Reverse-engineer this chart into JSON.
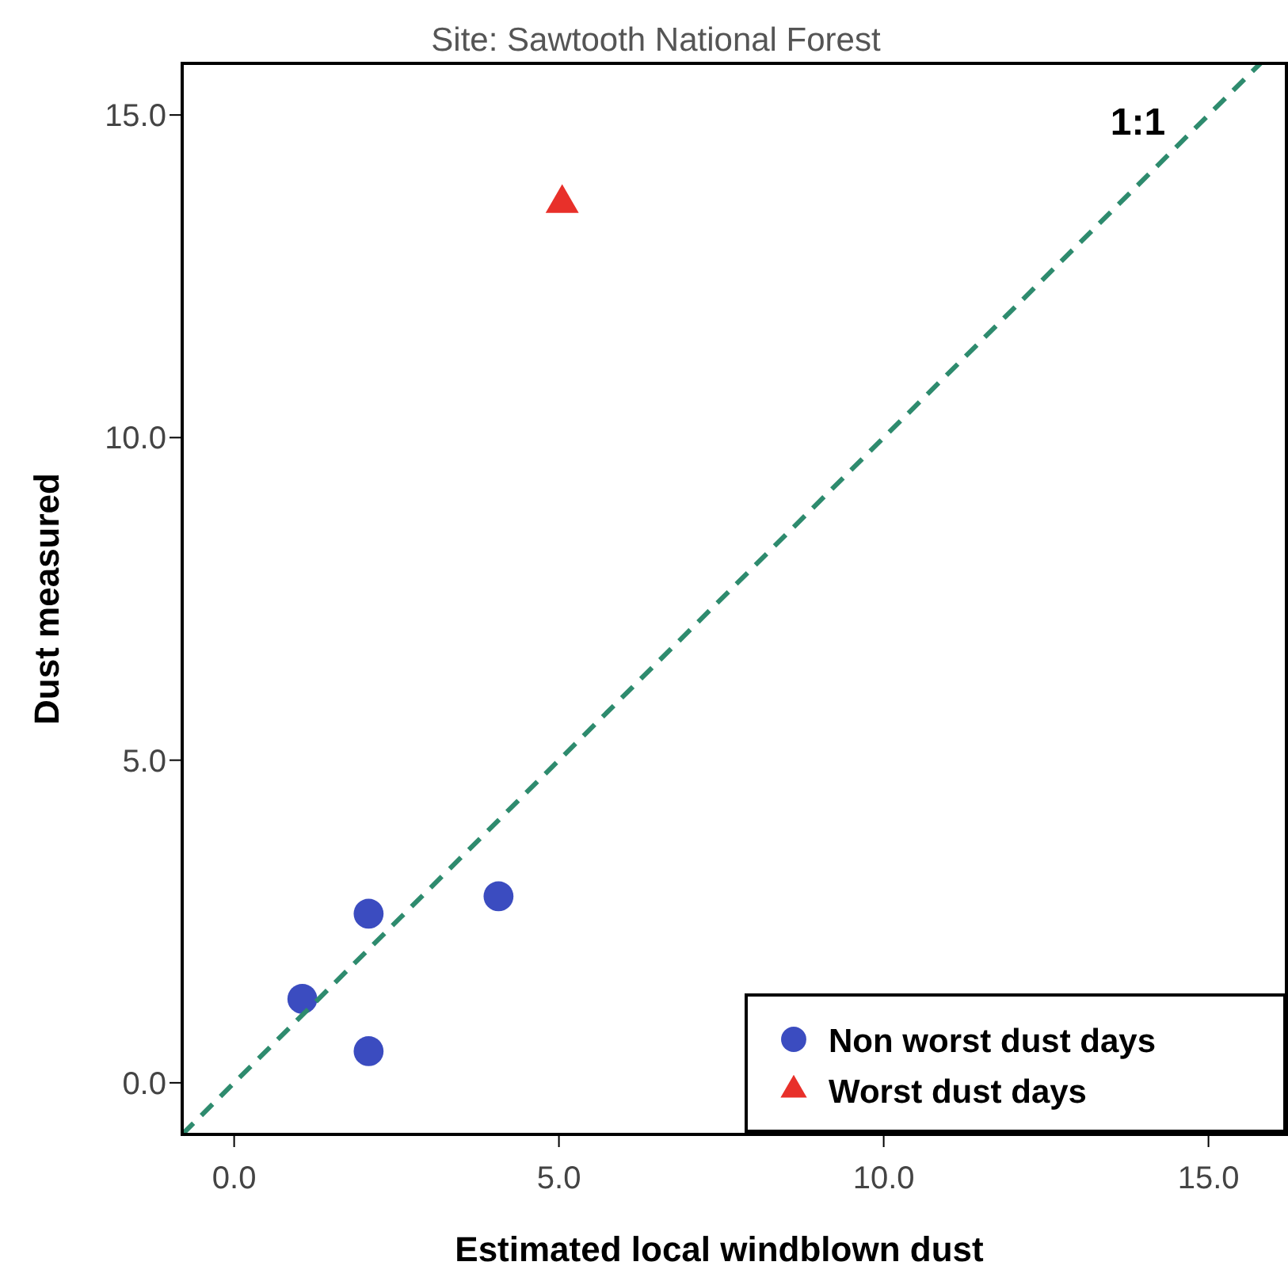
{
  "chart_data": {
    "type": "scatter",
    "title": "Site: Sawtooth National Forest",
    "xlabel": "Estimated local windblown dust",
    "ylabel": "Dust measured",
    "xlim": [
      -0.8,
      16.2
    ],
    "ylim": [
      -0.8,
      15.8
    ],
    "xticks": [
      {
        "value": 0,
        "label": "0.0"
      },
      {
        "value": 5,
        "label": "5.0"
      },
      {
        "value": 10,
        "label": "10.0"
      },
      {
        "value": 15,
        "label": "15.0"
      }
    ],
    "yticks": [
      {
        "value": 0,
        "label": "0.0"
      },
      {
        "value": 5,
        "label": "5.0"
      },
      {
        "value": 10,
        "label": "10.0"
      },
      {
        "value": 15,
        "label": "15.0"
      }
    ],
    "grid": false,
    "legend": "bottom right",
    "series": [
      {
        "name": "Non worst dust days",
        "marker": "circle",
        "color": "#3b4cc0",
        "x": [
          1.05,
          2.07,
          2.07,
          4.07
        ],
        "values": [
          1.3,
          0.49,
          2.62,
          2.89
        ]
      },
      {
        "name": "Worst dust days",
        "marker": "triangle",
        "color": "#e8302a",
        "x": [
          5.05
        ],
        "values": [
          13.63
        ]
      },
      {
        "name": "1:1",
        "type": "line",
        "line_style": "dashed",
        "color": "#2e8b6e",
        "x": [
          -0.8,
          15.8
        ],
        "values": [
          -0.8,
          15.8
        ]
      }
    ]
  }
}
